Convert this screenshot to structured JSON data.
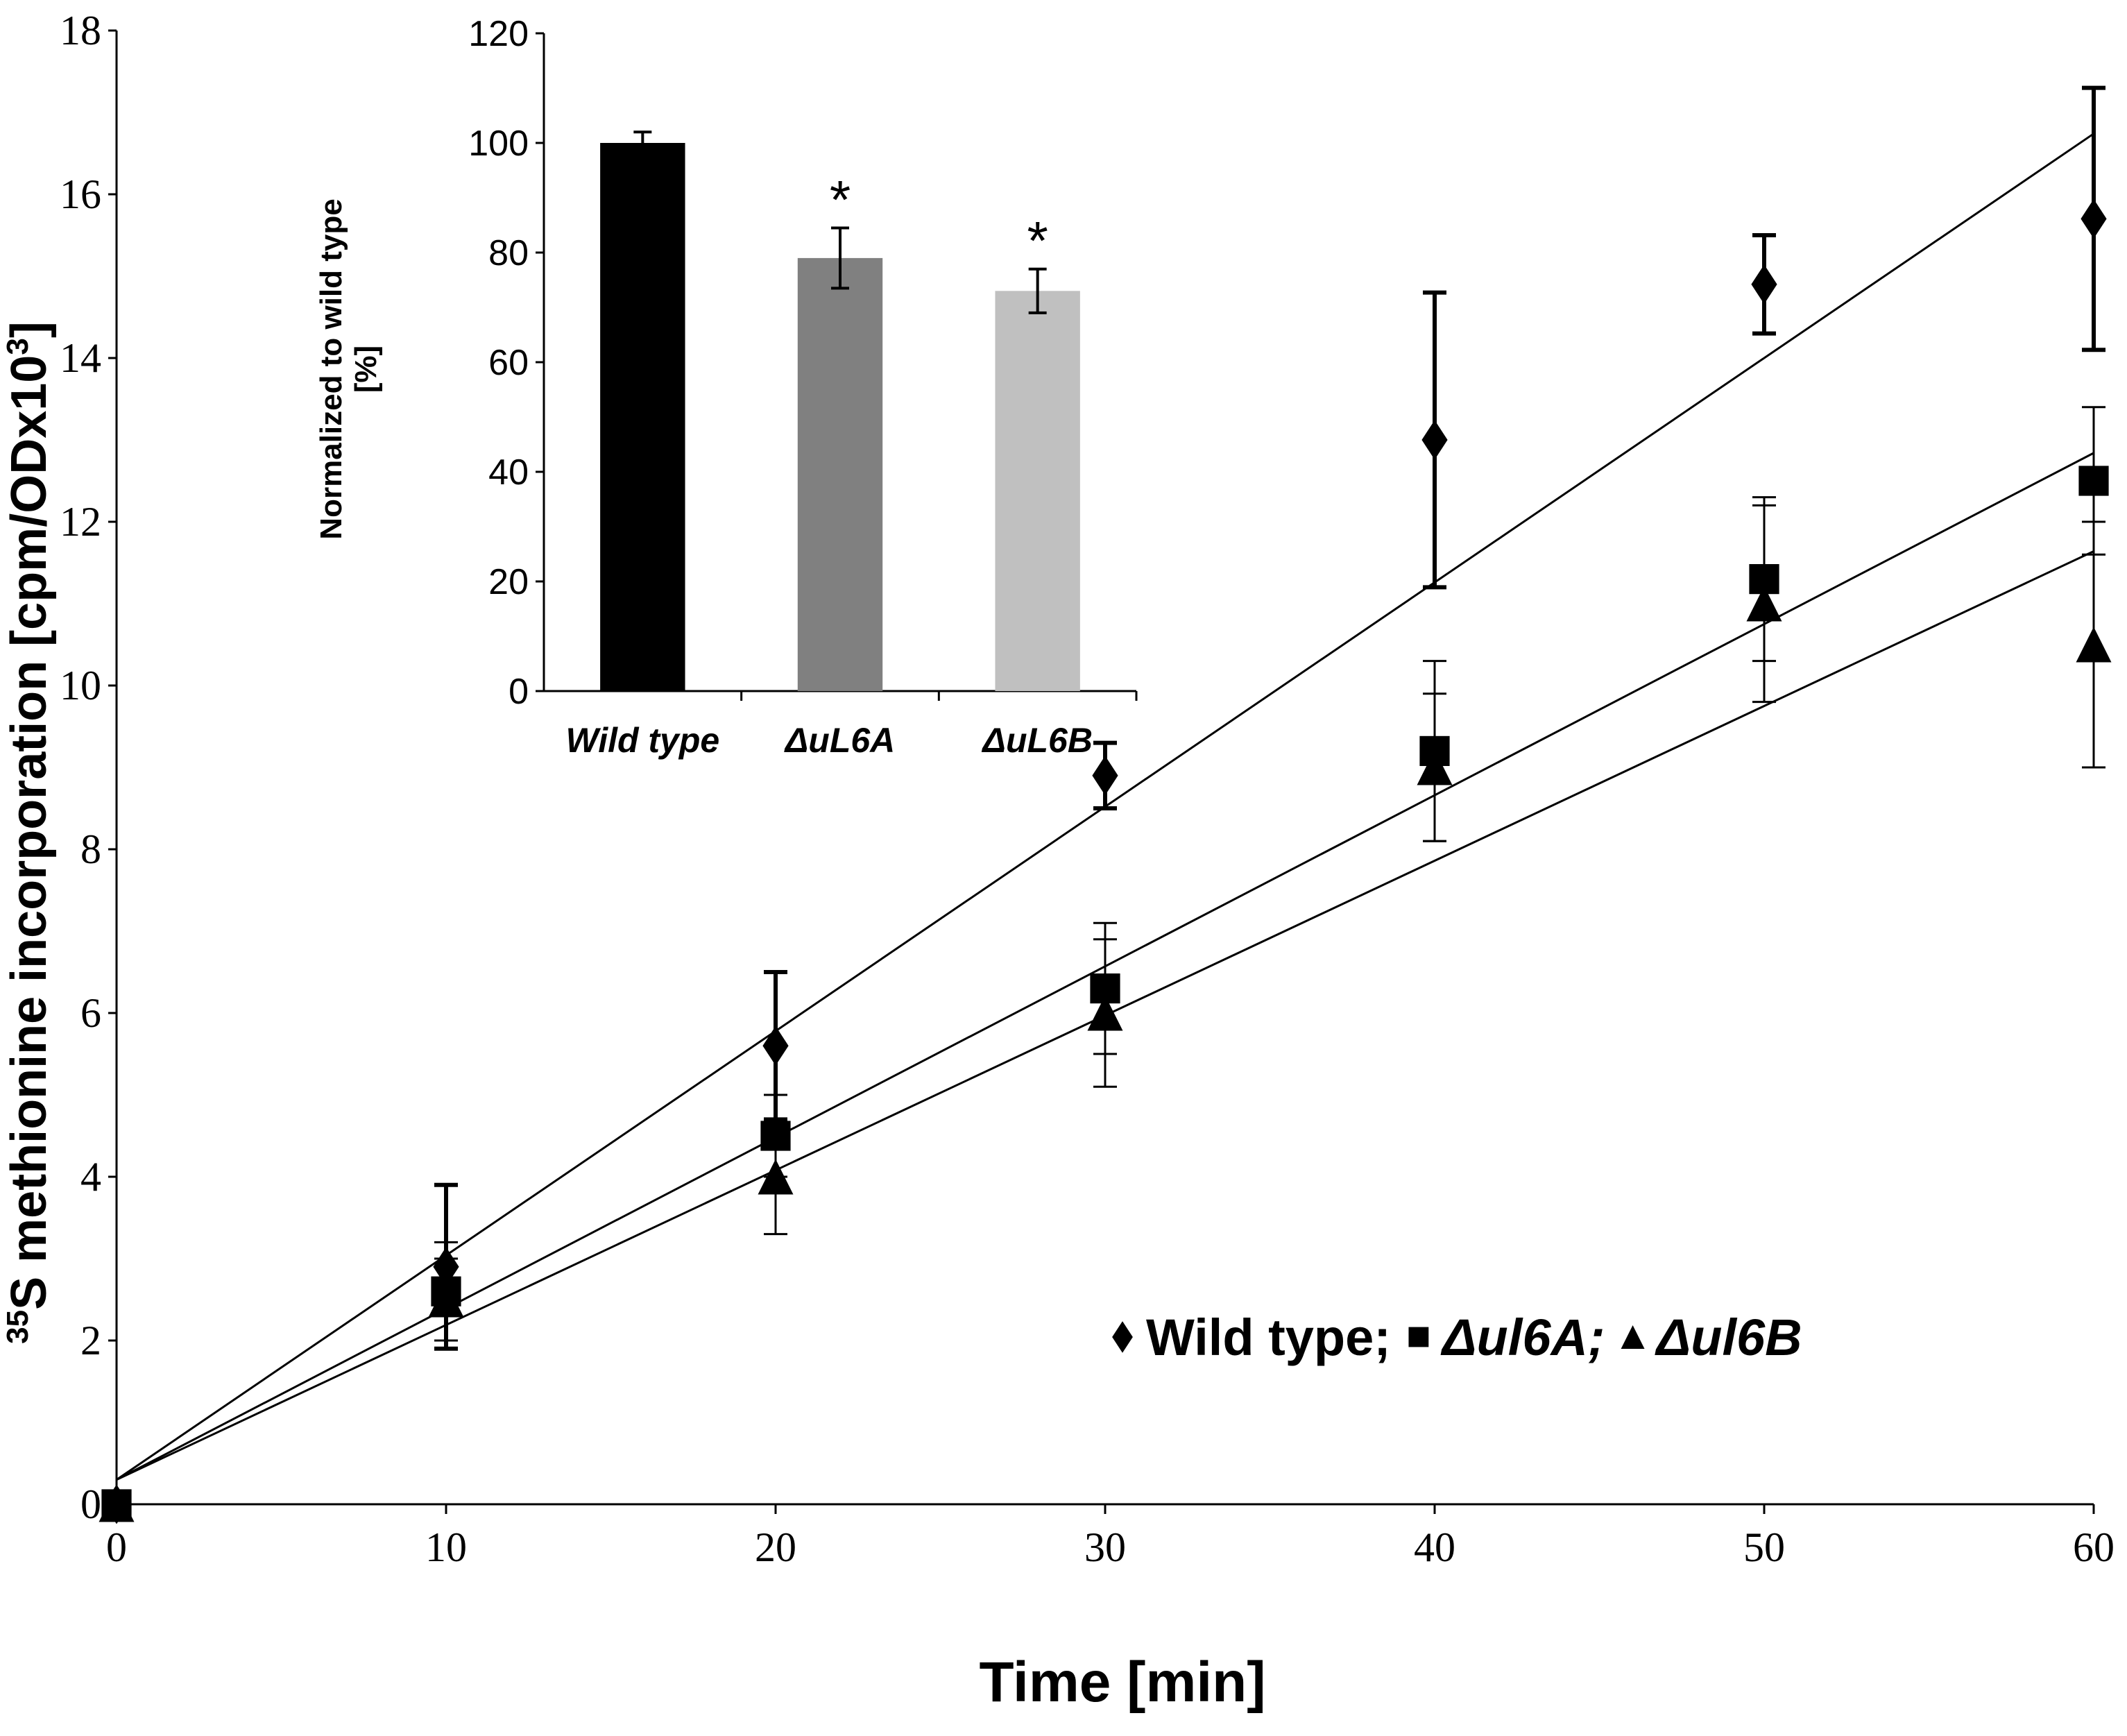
{
  "chart_data": [
    {
      "type": "scatter",
      "title": "",
      "xlabel": "Time [min]",
      "ylabel_prefix": "35",
      "ylabel_main": "S methionine incorporation [cpm/ODx10",
      "ylabel_exp": "3",
      "ylabel_end": "]",
      "xlim": [
        0,
        60
      ],
      "ylim": [
        0,
        18
      ],
      "xticks": [
        0,
        10,
        20,
        30,
        40,
        50,
        60
      ],
      "yticks": [
        0,
        2,
        4,
        6,
        8,
        10,
        12,
        14,
        16,
        18
      ],
      "series": [
        {
          "name": "Wild type",
          "marker": "diamond",
          "legend_label": "Wild type;",
          "x": [
            0,
            10,
            20,
            30,
            40,
            50,
            60
          ],
          "y": [
            0,
            2.9,
            5.6,
            8.9,
            13.0,
            14.9,
            15.7
          ],
          "err": [
            0,
            1.0,
            0.9,
            0.4,
            1.8,
            0.6,
            1.6
          ],
          "fit": {
            "intercept": 0.3,
            "slope": 0.274
          }
        },
        {
          "name": "Δul6A",
          "marker": "square",
          "legend_label": "Δul6A;",
          "x": [
            0,
            10,
            20,
            30,
            40,
            50,
            60
          ],
          "y": [
            0,
            2.6,
            4.5,
            6.3,
            9.2,
            11.3,
            12.5
          ],
          "err": [
            0,
            0.6,
            0.5,
            0.8,
            1.1,
            1.0,
            0.9
          ],
          "fit": {
            "intercept": 0.3,
            "slope": 0.209
          }
        },
        {
          "name": "Δul6B",
          "marker": "triangle",
          "legend_label": "Δul6B",
          "x": [
            0,
            10,
            20,
            30,
            40,
            50,
            60
          ],
          "y": [
            0,
            2.5,
            4.0,
            6.0,
            9.0,
            11.0,
            10.5
          ],
          "err": [
            0,
            0.5,
            0.7,
            0.9,
            0.9,
            1.2,
            1.5
          ],
          "fit": {
            "intercept": 0.3,
            "slope": 0.189
          }
        }
      ],
      "legend": "bottom-right"
    },
    {
      "type": "bar",
      "title": "inset",
      "ylabel_line1": "Normalized to wild type",
      "ylabel_line2": "[%]",
      "ylim": [
        0,
        120
      ],
      "yticks": [
        0,
        20,
        40,
        60,
        80,
        100,
        120
      ],
      "categories": [
        "Wild type",
        "ΔuL6A",
        "ΔuL6B"
      ],
      "values": [
        100,
        79,
        73
      ],
      "errors": [
        2,
        5.5,
        4
      ],
      "colors": [
        "#000000",
        "#808080",
        "#c0c0c0"
      ],
      "annotations": [
        "",
        "*",
        "*"
      ]
    }
  ]
}
